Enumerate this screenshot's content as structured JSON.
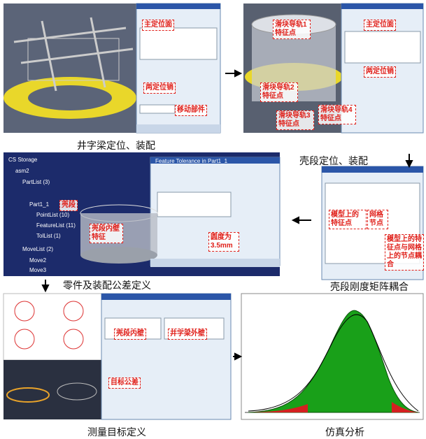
{
  "panels": [
    {
      "caption": "井字梁定位、装配",
      "labels": [
        "主定位面",
        "两定位销",
        "移动部件"
      ]
    },
    {
      "caption": "壳段定位、装配",
      "labels": [
        "滑块导轨1特征点",
        "主定位面",
        "滑块导轨2特征点",
        "两定位销",
        "滑块导轨3特征点",
        "滑块导轨4特征点"
      ]
    },
    {
      "caption": "零件及装配公差定义",
      "labels": [
        "壳段",
        "壳段内壁特征",
        "圆度为3.5mm"
      ],
      "tree": [
        "CS Storage",
        "asm2",
        "PartList (3)",
        "Part1_1",
        "PointList (10)",
        "FeatureList (11)",
        "TolList (1)",
        "MoveList (2)",
        "Move2",
        "Move3"
      ],
      "dialog_title": "Feature Tolerance in Part1_1"
    },
    {
      "caption": "壳段刚度矩阵耦合",
      "labels": [
        "模型上的特征点",
        "网格节点",
        "模型上的特征点与网格上的节点耦合"
      ]
    },
    {
      "caption": "测量目标定义",
      "labels": [
        "壳段内壁",
        "井字梁外壁",
        "目标公差"
      ]
    },
    {
      "caption": "仿真分析",
      "labels": []
    }
  ]
}
